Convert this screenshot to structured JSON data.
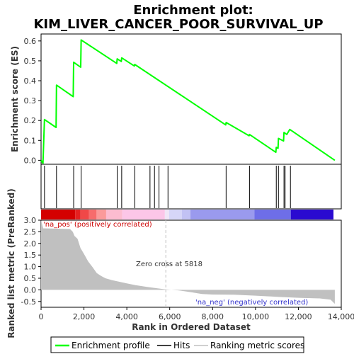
{
  "chart_data": {
    "type": "line",
    "title_line1": "Enrichment plot:",
    "title_line2": "KIM_LIVER_CANCER_POOR_SURVIVAL_UP",
    "ylabel_top": "Enrichment score (ES)",
    "ylabel_bottom": "Ranked list metric (PreRanked)",
    "xlabel": "Rank in Ordered Dataset",
    "top_yticks": [
      0.0,
      0.1,
      0.2,
      0.3,
      0.4,
      0.5,
      0.6
    ],
    "top_ytick_labels": [
      "0.0",
      "0.1",
      "0.2",
      "0.3",
      "0.4",
      "0.5",
      "0.6"
    ],
    "top_ylim": [
      -0.02,
      0.635
    ],
    "bottom_yticks": [
      -0.5,
      0.0,
      0.5,
      1.0,
      1.5,
      2.0,
      2.5,
      3.0
    ],
    "bottom_ytick_labels": [
      "-0.5",
      "0.0",
      "0.5",
      "1.0",
      "1.5",
      "2.0",
      "2.5",
      "3.0"
    ],
    "bottom_ylim": [
      -0.75,
      3.0
    ],
    "xticks": [
      0,
      2000,
      4000,
      6000,
      8000,
      10000,
      12000,
      14000
    ],
    "xtick_labels": [
      "0",
      "2,000",
      "4,000",
      "6,000",
      "8,000",
      "10,000",
      "12,000",
      "14,000"
    ],
    "xlim": [
      0,
      14000
    ],
    "n_genes": 13700,
    "series": [
      {
        "name": "Enrichment profile",
        "color": "#00ff00",
        "points": [
          [
            0,
            0.0
          ],
          [
            90,
            -0.015
          ],
          [
            160,
            0.205
          ],
          [
            700,
            0.165
          ],
          [
            720,
            0.378
          ],
          [
            1500,
            0.32
          ],
          [
            1520,
            0.493
          ],
          [
            1850,
            0.468
          ],
          [
            1870,
            0.605
          ],
          [
            3530,
            0.487
          ],
          [
            3550,
            0.51
          ],
          [
            3740,
            0.497
          ],
          [
            3760,
            0.515
          ],
          [
            4350,
            0.474
          ],
          [
            4370,
            0.482
          ],
          [
            8610,
            0.178
          ],
          [
            8630,
            0.19
          ],
          [
            9700,
            0.123
          ],
          [
            9720,
            0.13
          ],
          [
            10950,
            0.04
          ],
          [
            10970,
            0.065
          ],
          [
            11050,
            0.06
          ],
          [
            11070,
            0.11
          ],
          [
            11310,
            0.097
          ],
          [
            11330,
            0.14
          ],
          [
            11460,
            0.13
          ],
          [
            11600,
            0.155
          ],
          [
            13700,
            0.0
          ]
        ]
      }
    ],
    "hits": [
      160,
      720,
      1520,
      1870,
      3550,
      3760,
      4370,
      5080,
      5290,
      5500,
      5920,
      8630,
      9720,
      10970,
      11070,
      11330,
      11380,
      11630
    ],
    "metric_profile": [
      [
        0,
        3.0
      ],
      [
        100,
        2.65
      ],
      [
        1350,
        2.62
      ],
      [
        1480,
        2.5
      ],
      [
        1560,
        2.32
      ],
      [
        1700,
        2.2
      ],
      [
        1840,
        1.8
      ],
      [
        2000,
        1.55
      ],
      [
        2200,
        1.22
      ],
      [
        2400,
        0.98
      ],
      [
        2600,
        0.72
      ],
      [
        2800,
        0.6
      ],
      [
        3000,
        0.5
      ],
      [
        3300,
        0.42
      ],
      [
        3600,
        0.36
      ],
      [
        4000,
        0.28
      ],
      [
        4400,
        0.2
      ],
      [
        5000,
        0.12
      ],
      [
        5400,
        0.07
      ],
      [
        5818,
        0.02
      ],
      [
        6400,
        -0.02
      ],
      [
        7000,
        -0.1
      ],
      [
        7500,
        -0.18
      ],
      [
        8000,
        -0.2
      ],
      [
        9000,
        -0.21
      ],
      [
        10000,
        -0.25
      ],
      [
        11000,
        -0.3
      ],
      [
        12000,
        -0.34
      ],
      [
        13000,
        -0.37
      ],
      [
        13500,
        -0.42
      ],
      [
        13700,
        -0.6
      ]
    ],
    "zero_cross_rank": 5818,
    "annotations": {
      "zero_cross": "Zero cross at 5818",
      "na_pos": "'na_pos' (positively correlated)",
      "na_neg": "'na_neg' (negatively correlated)"
    },
    "colorbar": [
      {
        "from": 0,
        "to": 1600,
        "color": "#d40000"
      },
      {
        "from": 1600,
        "to": 1850,
        "color": "#e52020"
      },
      {
        "from": 1850,
        "to": 2250,
        "color": "#f04848"
      },
      {
        "from": 2250,
        "to": 2600,
        "color": "#f76c6c"
      },
      {
        "from": 2600,
        "to": 3050,
        "color": "#fb9a9a"
      },
      {
        "from": 3050,
        "to": 3800,
        "color": "#fcbcd0"
      },
      {
        "from": 3800,
        "to": 5800,
        "color": "#fcc6e8"
      },
      {
        "from": 5800,
        "to": 6000,
        "color": "#f0e6f6"
      },
      {
        "from": 6000,
        "to": 6600,
        "color": "#d6d6f8"
      },
      {
        "from": 6600,
        "to": 7000,
        "color": "#c2c2f4"
      },
      {
        "from": 7000,
        "to": 10000,
        "color": "#9a9aee"
      },
      {
        "from": 10000,
        "to": 11700,
        "color": "#6e6ee8"
      },
      {
        "from": 11700,
        "to": 13700,
        "color": "#2a0ad0"
      }
    ],
    "legend": {
      "items": [
        {
          "label": "Enrichment profile",
          "color": "#00ff00"
        },
        {
          "label": "Hits",
          "color": "#000000"
        },
        {
          "label": "Ranking metric scores",
          "color": "#c0c0c0"
        }
      ]
    }
  }
}
